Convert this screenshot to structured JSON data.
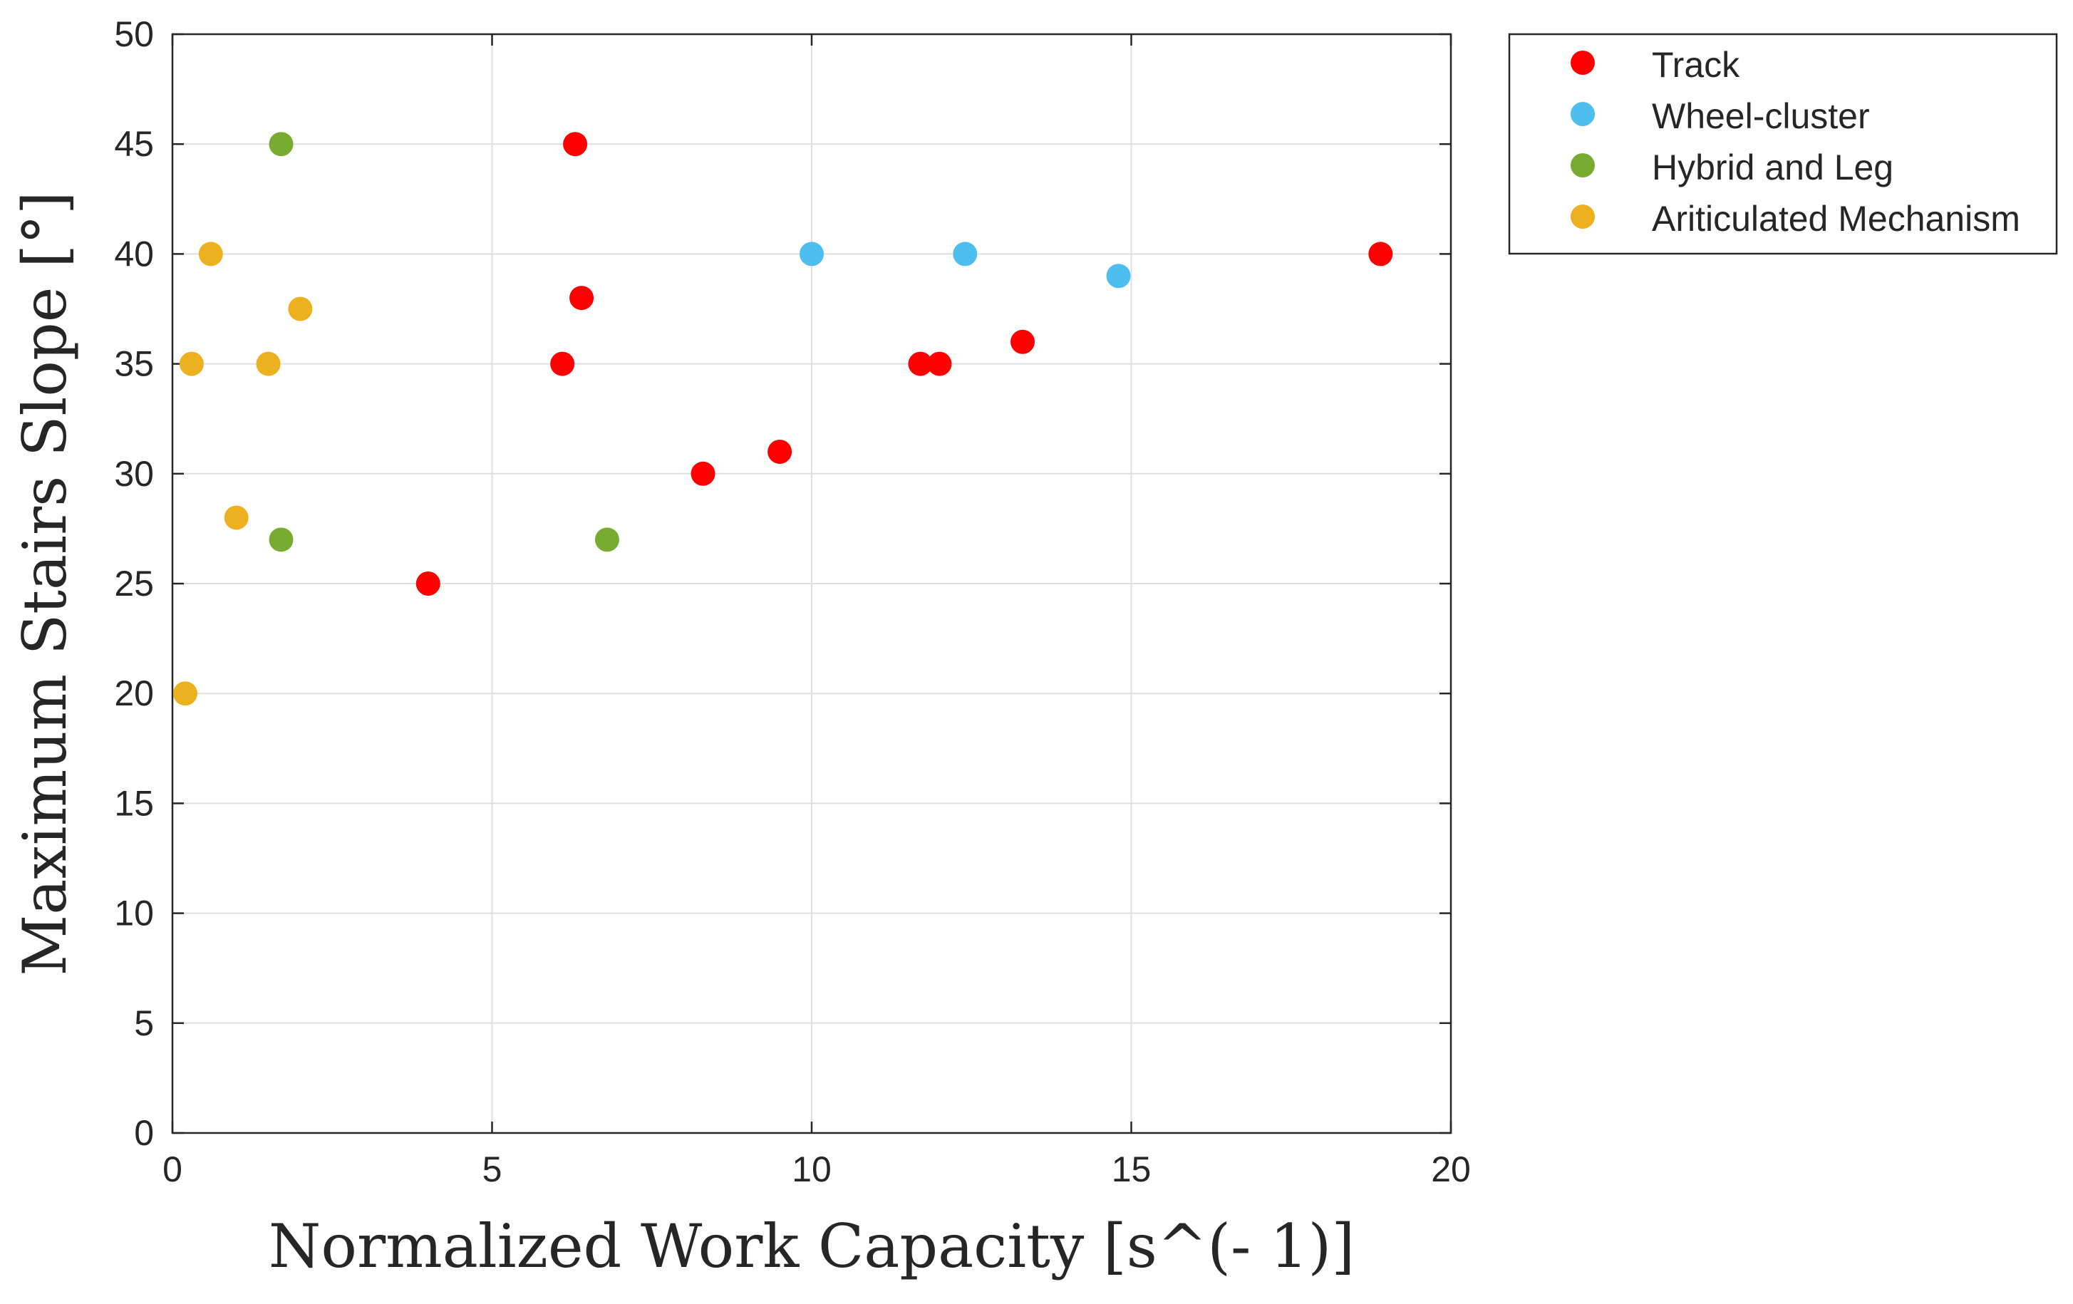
{
  "chart_data": {
    "type": "scatter",
    "title": "",
    "xlabel": "Normalized Work Capacity [s^(- 1)]",
    "ylabel": "Maximum Stairs Slope [°]",
    "xlim": [
      0,
      20
    ],
    "ylim": [
      0,
      50
    ],
    "xticks": [
      0,
      5,
      10,
      15,
      20
    ],
    "yticks": [
      0,
      5,
      10,
      15,
      20,
      25,
      30,
      35,
      40,
      45,
      50
    ],
    "grid": true,
    "legend_position": "outside-top-right",
    "series": [
      {
        "name": "Track",
        "color": "#ff0000",
        "points": [
          {
            "x": 6.3,
            "y": 45
          },
          {
            "x": 6.4,
            "y": 38
          },
          {
            "x": 6.1,
            "y": 35
          },
          {
            "x": 4.0,
            "y": 25
          },
          {
            "x": 8.3,
            "y": 30
          },
          {
            "x": 9.5,
            "y": 31
          },
          {
            "x": 11.7,
            "y": 35
          },
          {
            "x": 12.0,
            "y": 35
          },
          {
            "x": 13.3,
            "y": 36
          },
          {
            "x": 18.9,
            "y": 40
          }
        ]
      },
      {
        "name": "Wheel-cluster",
        "color": "#4dbeee",
        "points": [
          {
            "x": 10.0,
            "y": 40
          },
          {
            "x": 12.4,
            "y": 40
          },
          {
            "x": 14.8,
            "y": 39
          }
        ]
      },
      {
        "name": "Hybrid and Leg",
        "color": "#77ac30",
        "points": [
          {
            "x": 1.7,
            "y": 45
          },
          {
            "x": 1.7,
            "y": 27
          },
          {
            "x": 6.8,
            "y": 27
          }
        ]
      },
      {
        "name": "Ariticulated Mechanism",
        "color": "#edb120",
        "points": [
          {
            "x": 0.6,
            "y": 40
          },
          {
            "x": 2.0,
            "y": 37.5
          },
          {
            "x": 0.3,
            "y": 35
          },
          {
            "x": 1.5,
            "y": 35
          },
          {
            "x": 1.0,
            "y": 28
          },
          {
            "x": 0.2,
            "y": 20
          }
        ]
      }
    ]
  }
}
